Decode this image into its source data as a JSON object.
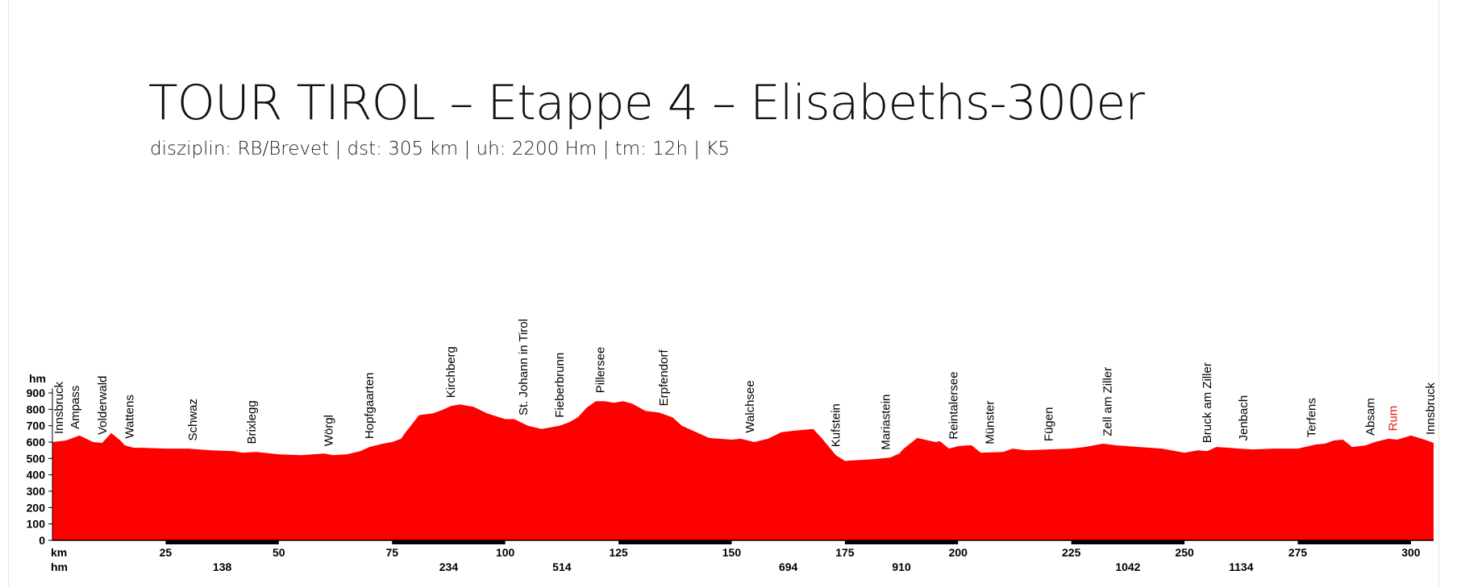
{
  "header": {
    "title": "TOUR TIROL – Etappe 4 – Elisabeths-300er",
    "subtitle": "disziplin: RB/Brevet | dst: 305 km | uh: 2200 Hm | tm: 12h | K5"
  },
  "colors": {
    "profile_fill": "#ff0000",
    "axis": "#000000",
    "highlight_text": "#ee1111"
  },
  "chart_data": {
    "type": "area",
    "title": "TOUR TIROL – Etappe 4 – Elisabeths-300er",
    "xlabel": "km",
    "ylabel": "hm",
    "xlim": [
      0,
      305
    ],
    "ylim": [
      0,
      900
    ],
    "y_ticks": [
      0,
      100,
      200,
      300,
      400,
      500,
      600,
      700,
      800,
      900
    ],
    "x_ticks": [
      25,
      50,
      75,
      100,
      125,
      150,
      175,
      200,
      225,
      250,
      275,
      300
    ],
    "x_axis_label": "km",
    "hm_row_label": "hm",
    "cumulative_climb": [
      {
        "km": 37.5,
        "hm": 138
      },
      {
        "km": 87.5,
        "hm": 234
      },
      {
        "km": 112.5,
        "hm": 514
      },
      {
        "km": 162.5,
        "hm": 694
      },
      {
        "km": 187.5,
        "hm": 910
      },
      {
        "km": 237.5,
        "hm": 1042
      },
      {
        "km": 262.5,
        "hm": 1134
      }
    ],
    "series": [
      {
        "x": [
          0,
          3,
          6,
          9,
          11,
          13,
          15,
          16,
          18,
          20,
          25,
          30,
          35,
          40,
          42,
          45,
          50,
          55,
          60,
          62,
          65,
          68,
          70,
          73,
          75,
          77,
          78,
          81,
          84,
          86,
          88,
          90,
          93,
          96,
          100,
          102,
          105,
          108,
          112,
          114,
          116,
          118,
          120,
          122,
          124,
          126,
          128,
          131,
          134,
          137,
          139,
          145,
          150,
          152,
          155,
          158,
          161,
          164,
          166,
          168,
          170,
          173,
          175,
          178,
          181,
          185,
          187,
          188,
          191,
          195,
          196,
          198,
          200,
          202,
          203,
          205,
          210,
          212,
          215,
          220,
          225,
          228,
          232,
          235,
          240,
          245,
          250,
          253,
          255,
          257,
          260,
          262,
          265,
          270,
          275,
          279,
          281,
          283,
          285,
          287,
          290,
          292,
          295,
          297,
          300,
          303,
          305
        ],
        "y": [
          600,
          610,
          640,
          600,
          595,
          655,
          610,
          580,
          565,
          565,
          560,
          560,
          550,
          545,
          535,
          540,
          525,
          520,
          530,
          520,
          525,
          545,
          570,
          590,
          600,
          620,
          660,
          765,
          775,
          795,
          820,
          830,
          815,
          775,
          740,
          740,
          700,
          680,
          700,
          720,
          750,
          810,
          850,
          850,
          840,
          850,
          835,
          790,
          780,
          750,
          700,
          625,
          615,
          620,
          600,
          620,
          660,
          670,
          675,
          680,
          620,
          520,
          485,
          490,
          495,
          505,
          530,
          560,
          625,
          600,
          605,
          560,
          575,
          580,
          580,
          535,
          540,
          560,
          550,
          555,
          560,
          570,
          590,
          580,
          570,
          560,
          535,
          550,
          545,
          570,
          565,
          560,
          555,
          560,
          560,
          585,
          590,
          610,
          615,
          570,
          580,
          600,
          620,
          615,
          640,
          615,
          595
        ]
      }
    ],
    "places": [
      {
        "name": "Innsbruck",
        "km": 0
      },
      {
        "name": "Ampass",
        "km": 5
      },
      {
        "name": "Volderwald",
        "km": 11
      },
      {
        "name": "Wattens",
        "km": 17
      },
      {
        "name": "Schwaz",
        "km": 31
      },
      {
        "name": "Brixlegg",
        "km": 44
      },
      {
        "name": "Wörgl",
        "km": 61
      },
      {
        "name": "Hopfgaarten",
        "km": 70
      },
      {
        "name": "Kirchberg",
        "km": 88
      },
      {
        "name": "St. Johann in Tirol",
        "km": 104
      },
      {
        "name": "Fieberbrunn",
        "km": 112
      },
      {
        "name": "Pillersee",
        "km": 121
      },
      {
        "name": "Erpfendorf",
        "km": 135
      },
      {
        "name": "Walchsee",
        "km": 154
      },
      {
        "name": "Kufstein",
        "km": 173
      },
      {
        "name": "Mariastein",
        "km": 184
      },
      {
        "name": "Reintalersee",
        "km": 199
      },
      {
        "name": "Münster",
        "km": 207
      },
      {
        "name": "Fügen",
        "km": 220
      },
      {
        "name": "Zell am Ziller",
        "km": 233
      },
      {
        "name": "Bruck am Ziller",
        "km": 255
      },
      {
        "name": "Jenbach",
        "km": 263
      },
      {
        "name": "Terfens",
        "km": 278
      },
      {
        "name": "Absam",
        "km": 291
      },
      {
        "name": "Rum",
        "km": 296,
        "highlight": true
      },
      {
        "name": "Innsbruck",
        "km": 305
      }
    ]
  }
}
